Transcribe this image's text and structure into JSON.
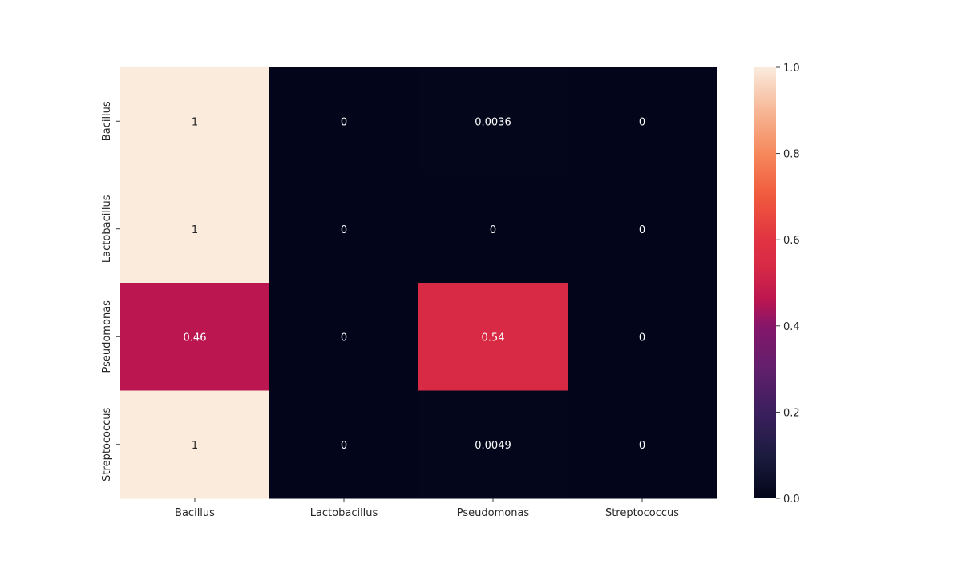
{
  "chart_data": {
    "type": "heatmap",
    "title": "",
    "xlabel": "",
    "ylabel": "",
    "x_categories": [
      "Bacillus",
      "Lactobacillus",
      "Pseudomonas",
      "Streptococcus"
    ],
    "y_categories": [
      "Bacillus",
      "Lactobacillus",
      "Pseudomonas",
      "Streptococcus"
    ],
    "values": [
      [
        1,
        0,
        0.0036,
        0
      ],
      [
        1,
        0,
        0,
        0
      ],
      [
        0.46,
        0,
        0.54,
        0
      ],
      [
        1,
        0,
        0.0049,
        0
      ]
    ],
    "cell_labels": [
      [
        "1",
        "0",
        "0.0036",
        "0"
      ],
      [
        "1",
        "0",
        "0",
        "0"
      ],
      [
        "0.46",
        "0",
        "0.54",
        "0"
      ],
      [
        "1",
        "0",
        "0.0049",
        "0"
      ]
    ],
    "colormap": "rocket",
    "colorbar": {
      "min": 0,
      "max": 1,
      "ticks": [
        0.0,
        0.2,
        0.4,
        0.6,
        0.8,
        1.0
      ],
      "tick_labels": [
        "0.0",
        "0.2",
        "0.4",
        "0.6",
        "0.8",
        "1.0"
      ],
      "placement": "right"
    },
    "grid": false
  }
}
